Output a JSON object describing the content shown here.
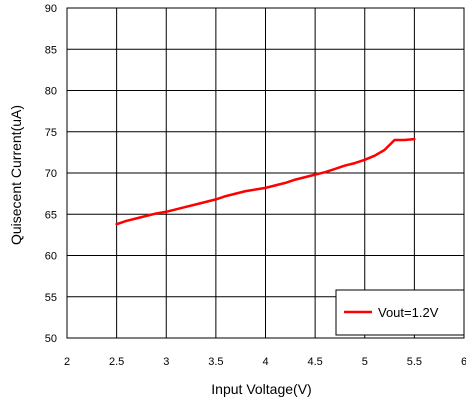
{
  "chart_data": {
    "type": "line",
    "title": "",
    "xlabel": "Input Voltage(V)",
    "ylabel": "Quisecent Current(uA)",
    "xlim": [
      2,
      6
    ],
    "ylim": [
      50,
      90
    ],
    "x_ticks": [
      2,
      2.5,
      3,
      3.5,
      4,
      4.5,
      5,
      5.5,
      6
    ],
    "x_tick_labels": [
      "2",
      "2.5",
      "3",
      "3.5",
      "4",
      "4.5",
      "5",
      "5.5",
      "6"
    ],
    "y_ticks": [
      50,
      55,
      60,
      65,
      70,
      75,
      80,
      85,
      90
    ],
    "y_tick_labels": [
      "50",
      "55",
      "60",
      "65",
      "70",
      "75",
      "80",
      "85",
      "90"
    ],
    "grid": true,
    "legend_position": "bottom-right",
    "series": [
      {
        "name": "Vout=1.2V",
        "color": "#ff0000",
        "x": [
          2.5,
          2.6,
          2.7,
          2.8,
          2.9,
          3.0,
          3.1,
          3.2,
          3.3,
          3.4,
          3.5,
          3.6,
          3.7,
          3.8,
          3.9,
          4.0,
          4.1,
          4.2,
          4.3,
          4.4,
          4.5,
          4.6,
          4.7,
          4.8,
          4.9,
          5.0,
          5.1,
          5.2,
          5.25,
          5.3,
          5.35,
          5.4,
          5.5
        ],
        "y": [
          63.8,
          64.2,
          64.5,
          64.8,
          65.1,
          65.3,
          65.6,
          65.9,
          66.2,
          66.5,
          66.8,
          67.2,
          67.5,
          67.8,
          68.0,
          68.2,
          68.5,
          68.8,
          69.2,
          69.5,
          69.8,
          70.1,
          70.5,
          70.9,
          71.2,
          71.6,
          72.1,
          72.8,
          73.4,
          74.0,
          74.0,
          74.0,
          74.1
        ]
      }
    ]
  }
}
